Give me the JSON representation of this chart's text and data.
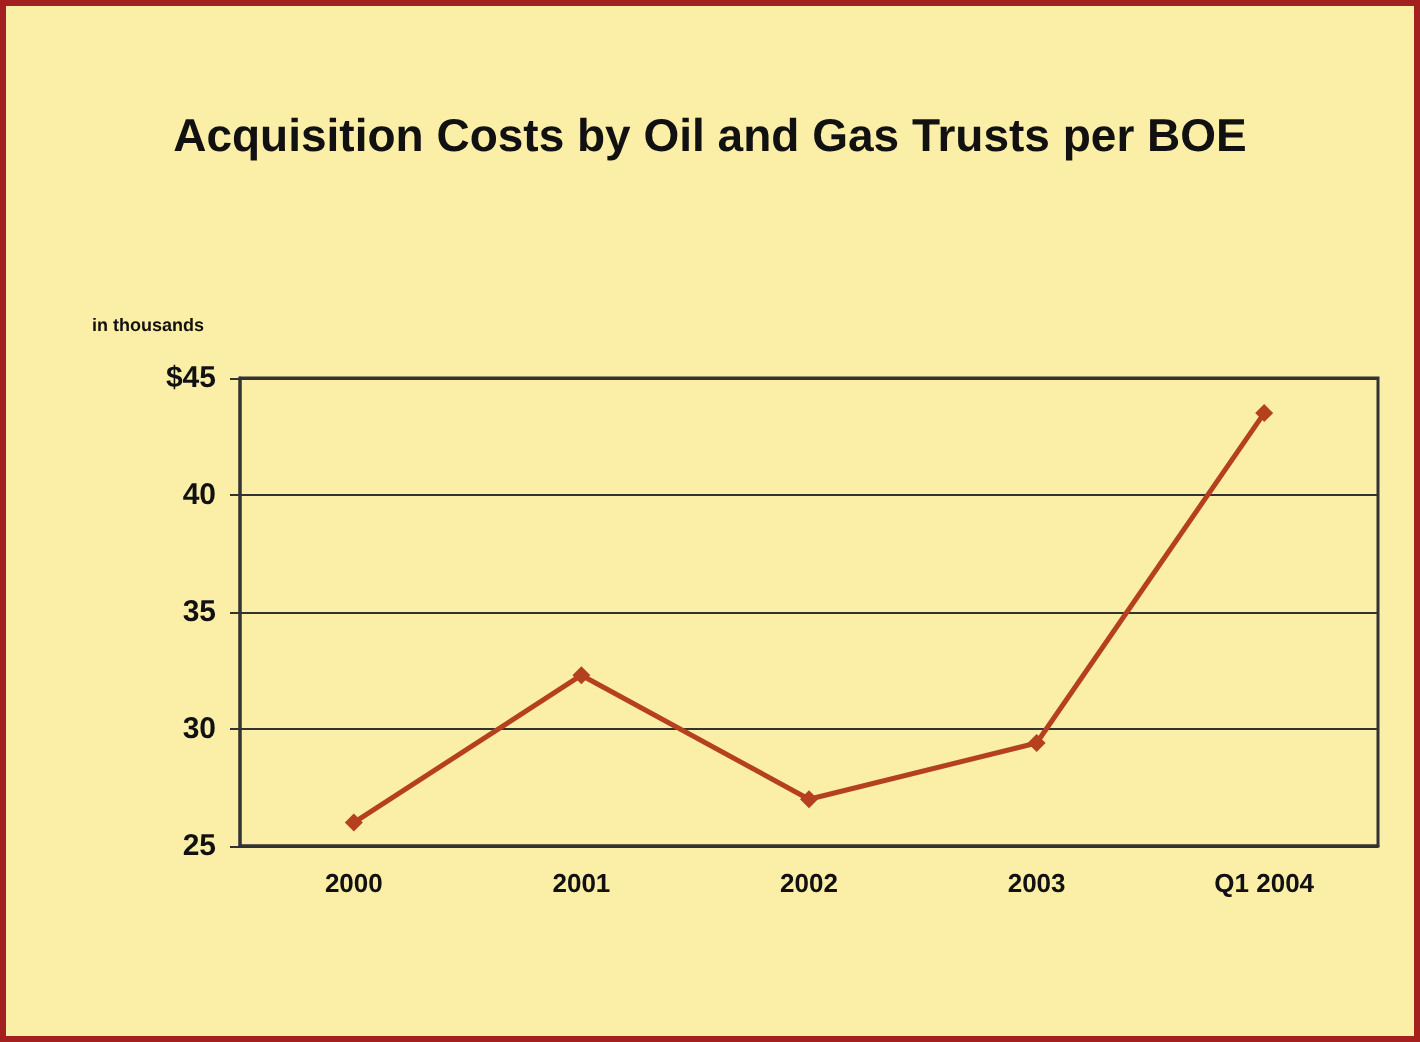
{
  "chart_data": {
    "type": "line",
    "title": "Acquisition Costs by Oil and Gas Trusts per BOE",
    "ylabel": "in thousands",
    "categories": [
      "2000",
      "2001",
      "2002",
      "2003",
      "Q1 2004"
    ],
    "series": [
      {
        "color": "#b5401f",
        "values": [
          26,
          32.3,
          27,
          29.4,
          43.5
        ]
      }
    ],
    "ylim": [
      25,
      45
    ],
    "yticks": [
      25,
      30,
      35,
      40,
      {
        "value": 45,
        "label": "$45"
      }
    ],
    "grid": "y",
    "marker": "diamond",
    "line_style": "solid"
  }
}
